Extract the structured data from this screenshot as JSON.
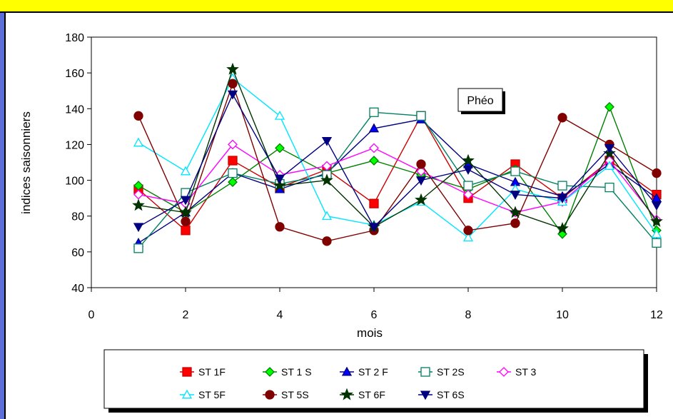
{
  "chart_data": {
    "type": "line",
    "title": "",
    "xlabel": "mois",
    "ylabel": "indices saisonniers",
    "xlim": [
      0,
      12
    ],
    "ylim": [
      40,
      180
    ],
    "xticks": [
      0,
      2,
      4,
      6,
      8,
      10,
      12
    ],
    "yticks": [
      40,
      60,
      80,
      100,
      120,
      140,
      160,
      180
    ],
    "grid": false,
    "legend_position": "bottom",
    "annotation": "Phéo",
    "x": [
      1,
      2,
      3,
      4,
      5,
      6,
      7,
      8,
      9,
      10,
      11,
      12
    ],
    "series": [
      {
        "name": "ST 1F",
        "color": "#cc0000",
        "fill": "#ff0000",
        "marker": "square-filled",
        "values": [
          95,
          72,
          111,
          96,
          106,
          87,
          136,
          90,
          109,
          90,
          111,
          92
        ]
      },
      {
        "name": "ST 1 S",
        "color": "#008000",
        "fill": "#00ff00",
        "marker": "diamond-filled",
        "values": [
          97,
          82,
          99,
          118,
          104,
          111,
          103,
          95,
          106,
          70,
          141,
          72
        ]
      },
      {
        "name": "ST 2 F",
        "color": "#000080",
        "fill": "#0000ff",
        "marker": "triangle-up-filled",
        "values": [
          65,
          82,
          104,
          95,
          104,
          129,
          134,
          109,
          99,
          91,
          109,
          90
        ]
      },
      {
        "name": "ST 2S",
        "color": "#008060",
        "fill": "none",
        "marker": "square-open",
        "values": [
          62,
          93,
          104,
          98,
          103,
          138,
          136,
          97,
          105,
          97,
          96,
          65
        ]
      },
      {
        "name": "ST 3",
        "color": "#ff00ff",
        "fill": "none",
        "marker": "diamond-open",
        "values": [
          92,
          87,
          120,
          103,
          108,
          118,
          105,
          92,
          82,
          88,
          111,
          78
        ]
      },
      {
        "name": "ST 5F",
        "color": "#00e5ff",
        "fill": "none",
        "marker": "triangle-up-open",
        "values": [
          121,
          105,
          157,
          136,
          80,
          75,
          88,
          68,
          95,
          88,
          108,
          70
        ]
      },
      {
        "name": "ST 5S",
        "color": "#800000",
        "fill": "#800000",
        "marker": "circle-filled",
        "values": [
          136,
          77,
          154,
          74,
          66,
          72,
          109,
          72,
          76,
          135,
          120,
          104
        ]
      },
      {
        "name": "ST 6F",
        "color": "#003300",
        "fill": "#003300",
        "marker": "star-filled",
        "values": [
          86,
          82,
          162,
          97,
          100,
          74,
          89,
          111,
          82,
          73,
          115,
          77
        ]
      },
      {
        "name": "ST 6S",
        "color": "#000080",
        "fill": "#000080",
        "marker": "triangle-down-filled",
        "values": [
          74,
          89,
          148,
          101,
          122,
          74,
          100,
          106,
          92,
          90,
          118,
          86
        ]
      }
    ]
  }
}
